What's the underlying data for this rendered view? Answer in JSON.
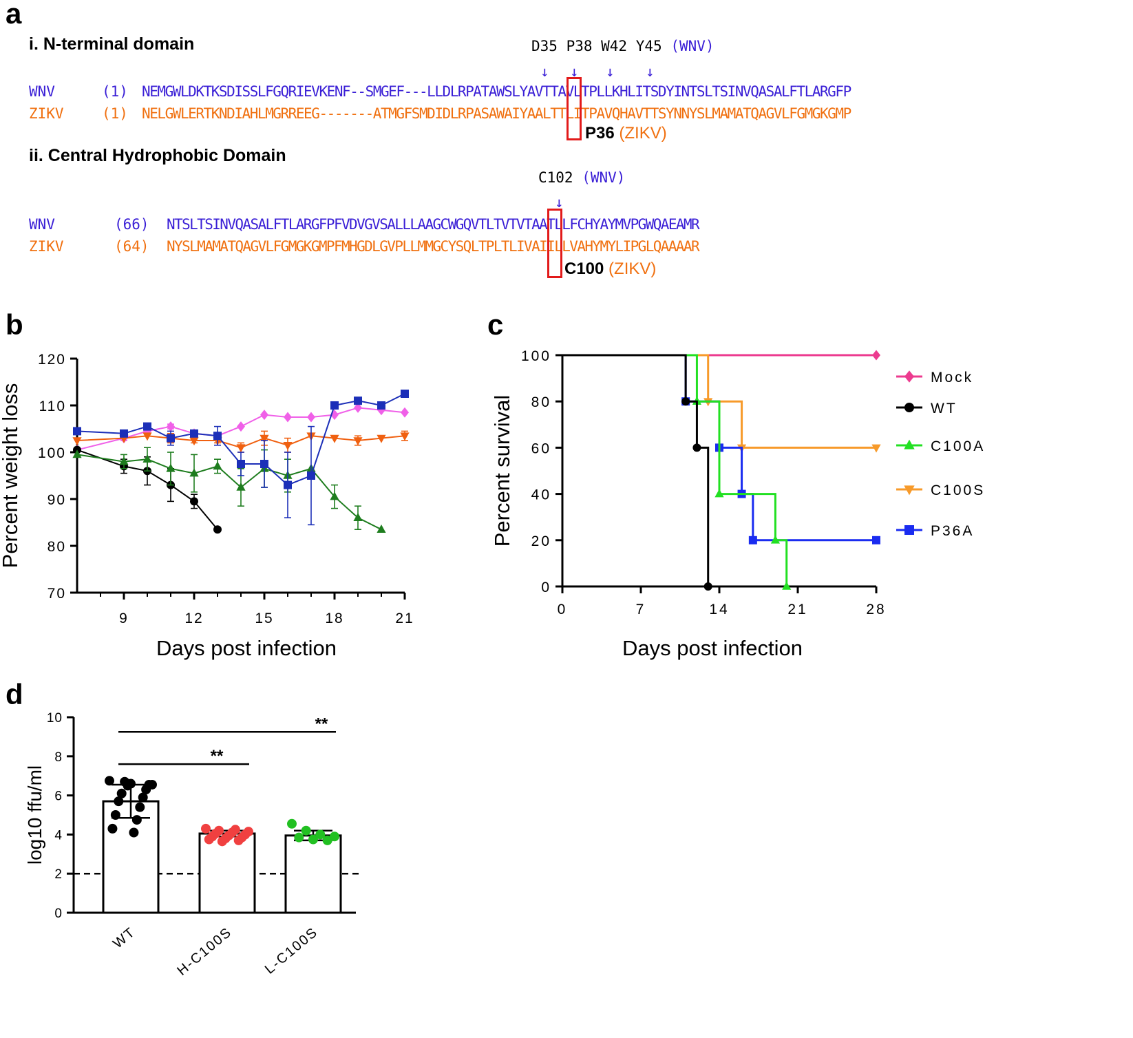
{
  "panel_a": {
    "label": "a",
    "section1": {
      "title": "i. N-terminal domain",
      "residues": "D35 P38 W42 Y45",
      "residues_virus": "(WNV)",
      "arrow": "↓",
      "wnv_name": "WNV",
      "wnv_pos": "(1)",
      "wnv_seq": "NEMGWLDKTKSDISSLFGQRIEVKENF--SMGEF---LLDLRPATAWSLYAVTTAVLTPLLKHLITSDYINTSLTSINVQASALFTLARGFP",
      "zikv_name": "ZIKV",
      "zikv_pos": "(1)",
      "zikv_seq": "NELGWLERTKNDIAHLMGRREEG-------ATMGFSMDIDLRPASAWAIYAALTTLITPAVQHAVTTSYNNYSLMAMATQAGVLFGMGKGMP",
      "mutation": "P36",
      "mutation_virus": "(ZIKV)"
    },
    "section2": {
      "title": "ii. Central Hydrophobic  Domain",
      "residue": "C102",
      "residue_virus": "(WNV)",
      "arrow": "↓",
      "wnv_name": "WNV",
      "wnv_pos": "(66)",
      "wnv_seq": "NTSLTSINVQASALFTLARGFPFVDVGVSALLLAAGCWGQVTLTVTVTAATLLFCHYAYMVPGWQAEAMR",
      "zikv_name": "ZIKV",
      "zikv_pos": "(64)",
      "zikv_seq": "NYSLMAMATQAGVLFGMGKGMPFMHGDLGVPLLMMGCYSQLTPLTLIVAIILLVAHYMYLIPGLQAAAAR",
      "mutation": "C100",
      "mutation_virus": "(ZIKV)"
    }
  },
  "chart_data": [
    {
      "panel": "b",
      "type": "line",
      "ylabel": "Percent weight loss",
      "xlabel": "Days post infection",
      "xlim": [
        7,
        21
      ],
      "ylim": [
        70,
        120
      ],
      "xticks": [
        9,
        12,
        15,
        18,
        21
      ],
      "yticks": [
        70,
        80,
        90,
        100,
        110,
        120
      ],
      "series": [
        {
          "name": "Mock",
          "color": "#f060e8",
          "marker": "diamond",
          "x": [
            7,
            9,
            10,
            11,
            12,
            13,
            14,
            15,
            16,
            17,
            18,
            19,
            20,
            21
          ],
          "y": [
            100.5,
            103,
            104.5,
            105.5,
            104,
            103.5,
            105.5,
            108,
            107.5,
            107.5,
            108,
            109.5,
            109,
            108.5
          ],
          "err": [
            0,
            0.5,
            0.5,
            0.5,
            0.5,
            0.5,
            0,
            0,
            0,
            0,
            0,
            0,
            0,
            0
          ]
        },
        {
          "name": "WT",
          "color": "#000000",
          "marker": "circle",
          "x": [
            7,
            9,
            10,
            11,
            12,
            13
          ],
          "y": [
            100.5,
            97,
            96,
            93,
            89.5,
            83.5
          ],
          "err": [
            0,
            1.5,
            3,
            3.5,
            1.5,
            0
          ]
        },
        {
          "name": "C100A",
          "color": "#1e7d1e",
          "marker": "triangle-up",
          "x": [
            7,
            9,
            10,
            11,
            12,
            13,
            14,
            15,
            16,
            17,
            18,
            19,
            20
          ],
          "y": [
            99.5,
            98,
            98.5,
            96.5,
            95.5,
            97,
            92.5,
            96.5,
            95,
            96.5,
            90.5,
            86,
            83.5
          ],
          "err": [
            0,
            1.5,
            2.5,
            3.5,
            4,
            1.5,
            4,
            4,
            3.5,
            0,
            2.5,
            2.5,
            0
          ]
        },
        {
          "name": "C100S",
          "color": "#f06010",
          "marker": "triangle-down",
          "x": [
            7,
            9,
            10,
            11,
            12,
            13,
            14,
            15,
            16,
            17,
            18,
            19,
            20,
            21
          ],
          "y": [
            102.5,
            103,
            103.5,
            103,
            102.5,
            102.5,
            101,
            103,
            101.5,
            103.5,
            103,
            102.5,
            103,
            103.5
          ],
          "err": [
            0,
            0,
            0,
            1,
            0.5,
            0.5,
            1,
            1.5,
            1.5,
            0,
            0,
            1,
            0,
            1
          ]
        },
        {
          "name": "P36A",
          "color": "#1c2fb8",
          "marker": "square",
          "x": [
            7,
            9,
            10,
            11,
            12,
            13,
            14,
            15,
            16,
            17,
            18,
            19,
            20,
            21
          ],
          "y": [
            104.5,
            104,
            105.5,
            103,
            104,
            103.5,
            97.5,
            97.5,
            93,
            95,
            110,
            111,
            110,
            112.5
          ],
          "err": [
            0,
            0,
            0,
            1.5,
            0.5,
            2,
            2.5,
            5,
            7,
            10.5,
            0,
            0,
            0,
            0
          ]
        }
      ]
    },
    {
      "panel": "c",
      "type": "line",
      "subtype": "step-survival",
      "ylabel": "Percent survival",
      "xlabel": "Days post infection",
      "xlim": [
        0,
        28
      ],
      "ylim": [
        0,
        100
      ],
      "xticks": [
        0,
        7,
        14,
        21,
        28
      ],
      "yticks": [
        0,
        20,
        40,
        60,
        80,
        100
      ],
      "legend_position": "right",
      "series": [
        {
          "name": "Mock",
          "color": "#ec3b8f",
          "marker": "diamond",
          "steps": [
            [
              0,
              100
            ],
            [
              28,
              100
            ]
          ],
          "markers": [
            [
              28,
              100
            ]
          ]
        },
        {
          "name": "WT",
          "color": "#000000",
          "marker": "circle",
          "steps": [
            [
              0,
              100
            ],
            [
              11,
              100
            ],
            [
              11,
              80
            ],
            [
              12,
              80
            ],
            [
              12,
              60
            ],
            [
              13,
              60
            ],
            [
              13,
              0
            ]
          ],
          "markers": [
            [
              11,
              80
            ],
            [
              12,
              60
            ],
            [
              13,
              0
            ]
          ]
        },
        {
          "name": "C100A",
          "color": "#22e022",
          "marker": "triangle-up",
          "steps": [
            [
              0,
              100
            ],
            [
              12,
              100
            ],
            [
              12,
              80
            ],
            [
              14,
              80
            ],
            [
              14,
              40
            ],
            [
              19,
              40
            ],
            [
              19,
              20
            ],
            [
              20,
              20
            ],
            [
              20,
              0
            ]
          ],
          "markers": [
            [
              12,
              80
            ],
            [
              14,
              40
            ],
            [
              19,
              20
            ],
            [
              20,
              0
            ]
          ]
        },
        {
          "name": "C100S",
          "color": "#f79a2a",
          "marker": "triangle-down",
          "steps": [
            [
              0,
              100
            ],
            [
              13,
              100
            ],
            [
              13,
              80
            ],
            [
              16,
              80
            ],
            [
              16,
              60
            ],
            [
              28,
              60
            ]
          ],
          "markers": [
            [
              13,
              80
            ],
            [
              16,
              60
            ],
            [
              28,
              60
            ]
          ]
        },
        {
          "name": "P36A",
          "color": "#1a2cf0",
          "marker": "square",
          "steps": [
            [
              0,
              100
            ],
            [
              11,
              100
            ],
            [
              11,
              80
            ],
            [
              14,
              80
            ],
            [
              14,
              60
            ],
            [
              16,
              60
            ],
            [
              16,
              40
            ],
            [
              17,
              40
            ],
            [
              17,
              20
            ],
            [
              28,
              20
            ]
          ],
          "markers": [
            [
              11,
              80
            ],
            [
              14,
              60
            ],
            [
              16,
              40
            ],
            [
              17,
              20
            ],
            [
              28,
              20
            ]
          ]
        }
      ]
    },
    {
      "panel": "d",
      "type": "bar",
      "ylabel": "log10 ffu/ml",
      "xlabel": "",
      "ylim": [
        0,
        10
      ],
      "yticks": [
        0,
        2,
        4,
        6,
        8,
        10
      ],
      "categories": [
        "WT",
        "H-C100S",
        "L-C100S"
      ],
      "values": [
        5.7,
        4.05,
        3.95
      ],
      "errors": [
        0.85,
        0.15,
        0.25
      ],
      "point_colors": [
        "#000000",
        "#f04040",
        "#22c022"
      ],
      "points": [
        [
          6.75,
          6.6,
          6.55,
          6.5,
          6.55,
          6.7,
          6.3,
          6.1,
          5.9,
          5.7,
          5.4,
          5.0,
          4.75,
          4.3,
          4.1
        ],
        [
          4.3,
          4.25,
          4.2,
          4.15,
          4.1,
          4.05,
          4.0,
          3.95,
          3.9,
          3.85,
          3.8,
          3.75,
          3.7,
          3.65
        ],
        [
          4.55,
          4.2,
          4.0,
          3.9,
          3.85,
          3.75,
          3.7
        ]
      ],
      "dashed_line": 2,
      "significance": [
        {
          "pair": [
            "WT",
            "H-C100S"
          ],
          "text": "**"
        },
        {
          "pair": [
            "WT",
            "L-C100S"
          ],
          "text": "**"
        }
      ]
    }
  ]
}
